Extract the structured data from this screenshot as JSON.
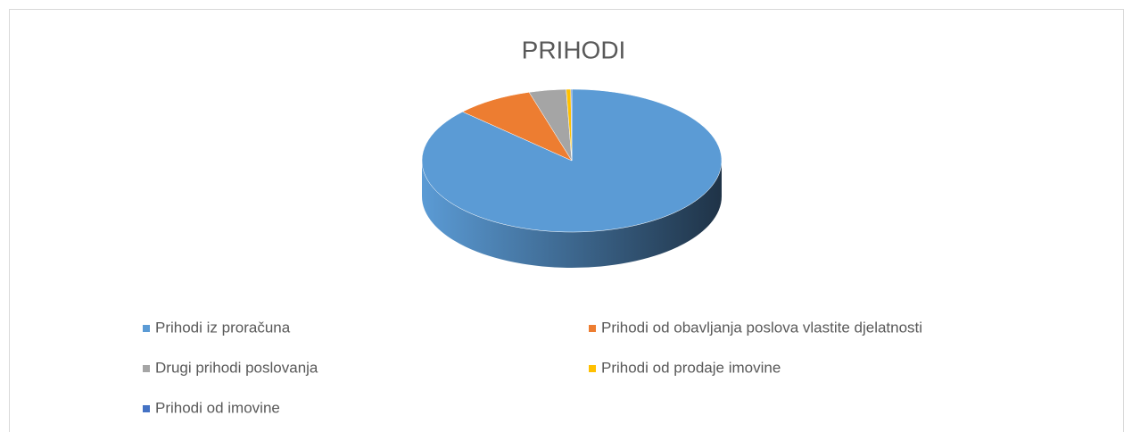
{
  "chart_data": {
    "type": "pie3d",
    "title": "PRIHODI",
    "categories": [
      "Prihodi iz proračuna",
      "Prihodi od obavljanja poslova vlastite djelatnosti",
      "Drugi prihodi poslovanja",
      "Prihodi od prodaje imovine",
      "Prihodi od imovine"
    ],
    "values": [
      87,
      8.4,
      4,
      0.5,
      0.1
    ],
    "colors": [
      "#5b9bd5",
      "#ed7d31",
      "#a5a5a5",
      "#ffc000",
      "#4472c4"
    ],
    "legend": "bottom"
  }
}
